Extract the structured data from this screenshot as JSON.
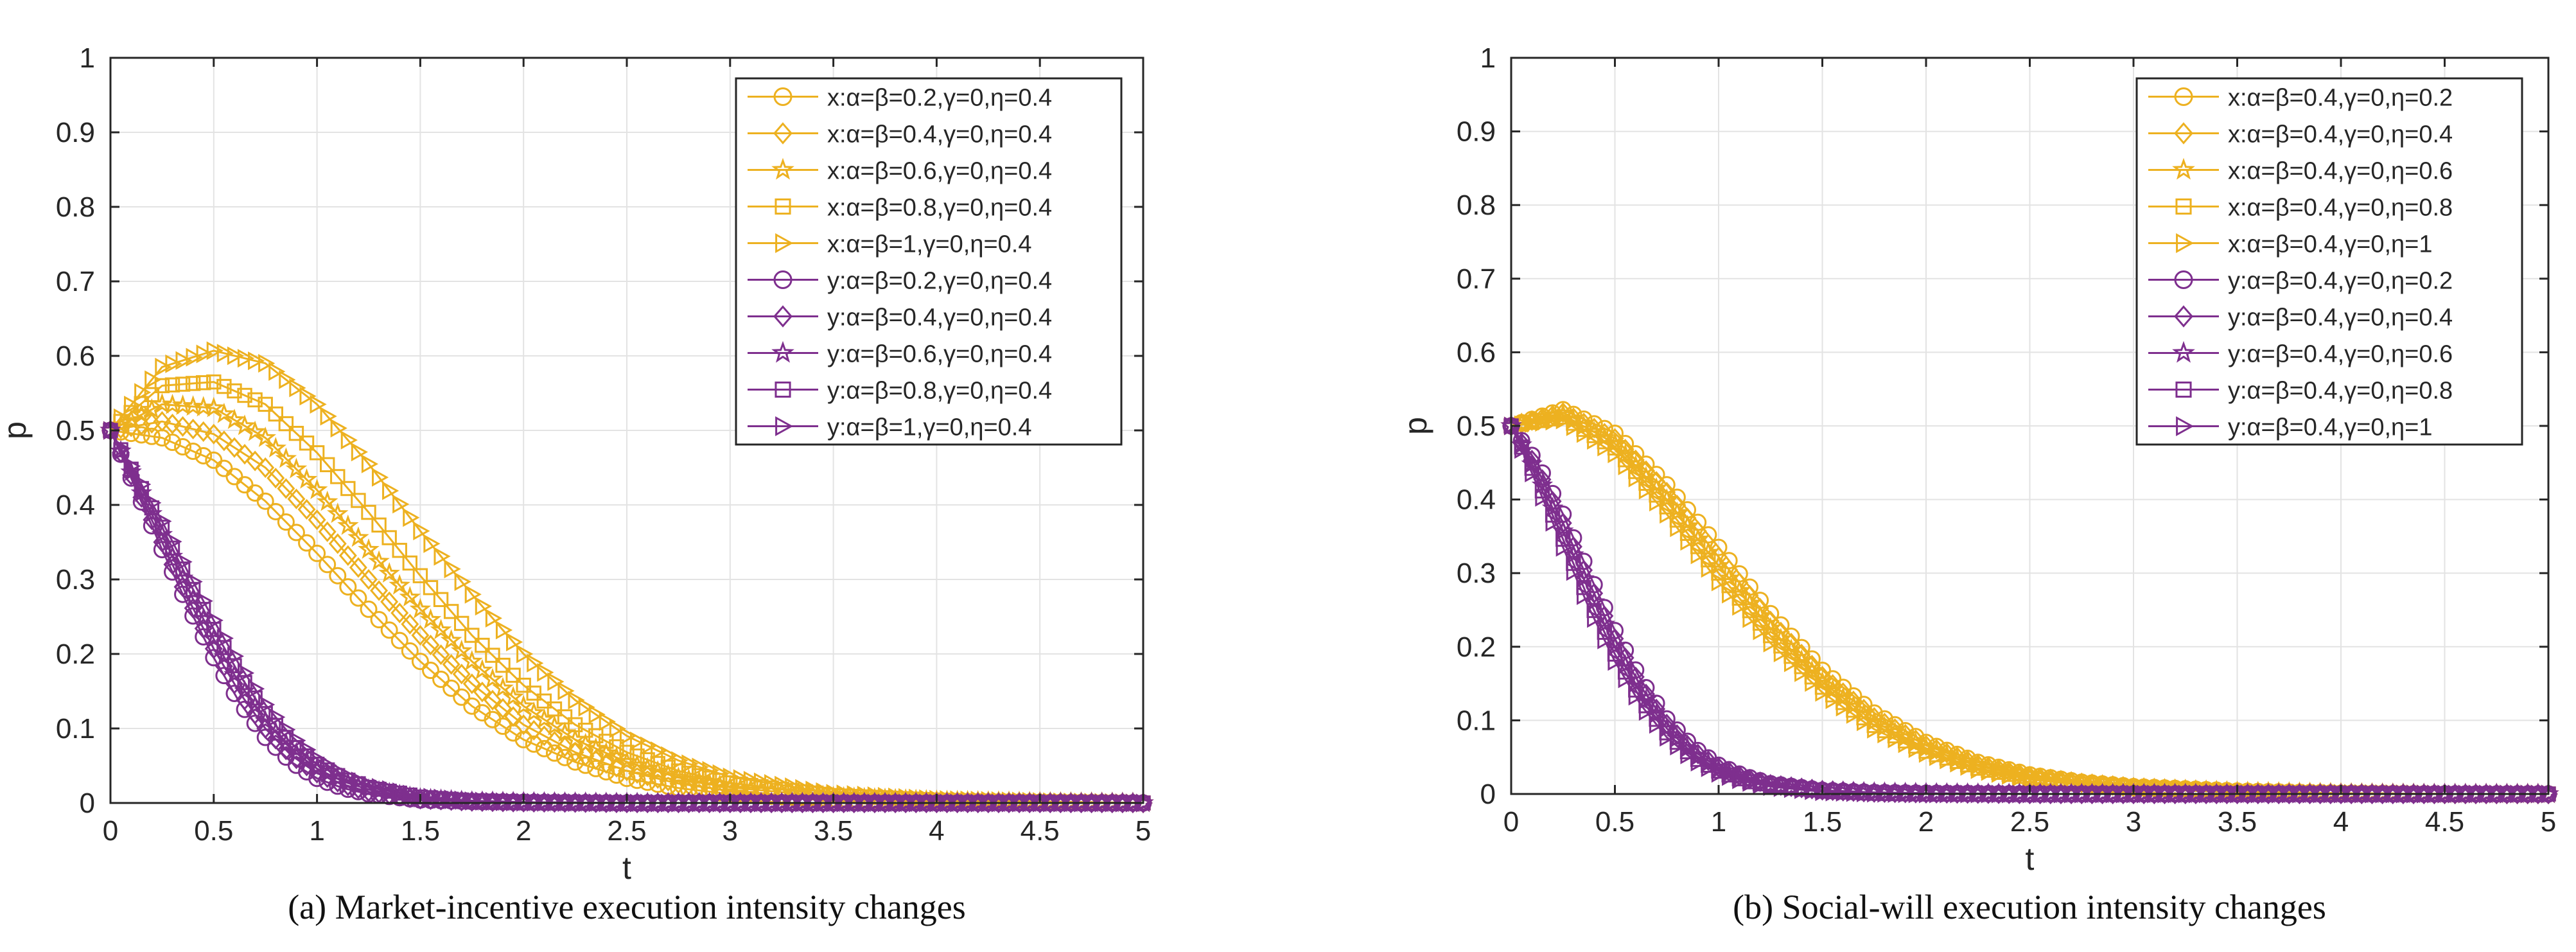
{
  "chart_data": [
    {
      "type": "line",
      "panel_id": "a",
      "title": "(a) Market-incentive execution intensity changes",
      "xlabel": "t",
      "ylabel": "p",
      "xlim": [
        0,
        5
      ],
      "ylim": [
        0,
        1
      ],
      "xticks": [
        "0",
        "0.5",
        "1",
        "1.5",
        "2",
        "2.5",
        "3",
        "3.5",
        "4",
        "4.5",
        "5"
      ],
      "yticks": [
        "0",
        "0.1",
        "0.2",
        "0.3",
        "0.4",
        "0.5",
        "0.6",
        "0.7",
        "0.8",
        "0.9",
        "1"
      ],
      "grid": true,
      "legend_position": "top-right",
      "colors": {
        "x_group": "#EDB120",
        "y_group": "#7E2F8E"
      },
      "series": [
        {
          "name": "x:α=β=0.2,γ=0,η=0.4",
          "group": "x",
          "marker": "circle",
          "x": [
            0,
            0.25,
            0.5,
            0.75,
            1,
            1.25,
            1.5,
            1.75,
            2,
            2.25,
            2.5,
            2.75,
            3,
            3.5,
            4,
            4.5,
            5
          ],
          "values": [
            0.5,
            0.49,
            0.46,
            0.405,
            0.335,
            0.26,
            0.19,
            0.13,
            0.085,
            0.055,
            0.033,
            0.02,
            0.012,
            0.005,
            0.002,
            0.001,
            0.0
          ]
        },
        {
          "name": "x:α=β=0.4,γ=0,η=0.4",
          "group": "x",
          "marker": "diamond",
          "x": [
            0,
            0.25,
            0.5,
            0.75,
            1,
            1.25,
            1.5,
            1.75,
            2,
            2.25,
            2.5,
            2.75,
            3,
            3.5,
            4,
            4.5,
            5
          ],
          "values": [
            0.5,
            0.512,
            0.495,
            0.45,
            0.38,
            0.3,
            0.225,
            0.16,
            0.105,
            0.068,
            0.043,
            0.026,
            0.016,
            0.006,
            0.002,
            0.001,
            0.0
          ]
        },
        {
          "name": "x:α=β=0.6,γ=0,η=0.4",
          "group": "x",
          "marker": "star",
          "x": [
            0,
            0.25,
            0.5,
            0.75,
            1,
            1.25,
            1.5,
            1.75,
            2,
            2.25,
            2.5,
            2.75,
            3,
            3.5,
            4,
            4.5,
            5
          ],
          "values": [
            0.5,
            0.535,
            0.53,
            0.49,
            0.42,
            0.34,
            0.26,
            0.19,
            0.13,
            0.085,
            0.055,
            0.034,
            0.021,
            0.008,
            0.003,
            0.001,
            0.0
          ]
        },
        {
          "name": "x:α=β=0.8,γ=0,η=0.4",
          "group": "x",
          "marker": "square",
          "x": [
            0,
            0.25,
            0.5,
            0.75,
            1,
            1.25,
            1.5,
            1.75,
            2,
            2.25,
            2.5,
            2.75,
            3,
            3.5,
            4,
            4.5,
            5
          ],
          "values": [
            0.5,
            0.56,
            0.565,
            0.535,
            0.47,
            0.39,
            0.305,
            0.225,
            0.158,
            0.105,
            0.068,
            0.043,
            0.027,
            0.01,
            0.004,
            0.001,
            0.0
          ]
        },
        {
          "name": "x:α=β=1,γ=0,η=0.4",
          "group": "x",
          "marker": "triangle-right",
          "x": [
            0,
            0.25,
            0.5,
            0.75,
            1,
            1.25,
            1.5,
            1.75,
            2,
            2.25,
            2.5,
            2.75,
            3,
            3.5,
            4,
            4.5,
            5
          ],
          "values": [
            0.5,
            0.585,
            0.607,
            0.59,
            0.535,
            0.455,
            0.365,
            0.28,
            0.2,
            0.138,
            0.09,
            0.057,
            0.035,
            0.013,
            0.005,
            0.002,
            0.0
          ]
        },
        {
          "name": "y:α=β=0.2,γ=0,η=0.4",
          "group": "y",
          "marker": "circle",
          "x": [
            0,
            0.125,
            0.25,
            0.375,
            0.5,
            0.625,
            0.75,
            0.875,
            1,
            1.125,
            1.25,
            1.5,
            1.75,
            2,
            2.5,
            3,
            4,
            5
          ],
          "values": [
            0.5,
            0.42,
            0.34,
            0.265,
            0.195,
            0.135,
            0.088,
            0.055,
            0.033,
            0.02,
            0.012,
            0.004,
            0.002,
            0.001,
            0.0,
            0.0,
            0.0,
            0.0
          ]
        },
        {
          "name": "y:α=β=0.4,γ=0,η=0.4",
          "group": "y",
          "marker": "diamond",
          "x": [
            0,
            0.125,
            0.25,
            0.375,
            0.5,
            0.625,
            0.75,
            0.875,
            1,
            1.125,
            1.25,
            1.5,
            1.75,
            2,
            2.5,
            3,
            4,
            5
          ],
          "values": [
            0.5,
            0.425,
            0.35,
            0.275,
            0.207,
            0.148,
            0.1,
            0.064,
            0.04,
            0.025,
            0.015,
            0.005,
            0.002,
            0.001,
            0.0,
            0.0,
            0.0,
            0.0
          ]
        },
        {
          "name": "y:α=β=0.6,γ=0,η=0.4",
          "group": "y",
          "marker": "star",
          "x": [
            0,
            0.125,
            0.25,
            0.375,
            0.5,
            0.625,
            0.75,
            0.875,
            1,
            1.125,
            1.25,
            1.5,
            1.75,
            2,
            2.5,
            3,
            4,
            5
          ],
          "values": [
            0.5,
            0.43,
            0.36,
            0.287,
            0.22,
            0.16,
            0.11,
            0.072,
            0.046,
            0.029,
            0.018,
            0.006,
            0.002,
            0.001,
            0.0,
            0.0,
            0.0,
            0.0
          ]
        },
        {
          "name": "y:α=β=0.8,γ=0,η=0.4",
          "group": "y",
          "marker": "square",
          "x": [
            0,
            0.125,
            0.25,
            0.375,
            0.5,
            0.625,
            0.75,
            0.875,
            1,
            1.125,
            1.25,
            1.5,
            1.75,
            2,
            2.5,
            3,
            4,
            5
          ],
          "values": [
            0.5,
            0.435,
            0.37,
            0.3,
            0.233,
            0.172,
            0.12,
            0.08,
            0.052,
            0.033,
            0.021,
            0.008,
            0.003,
            0.001,
            0.0,
            0.0,
            0.0,
            0.0
          ]
        },
        {
          "name": "y:α=β=1,γ=0,η=0.4",
          "group": "y",
          "marker": "triangle-right",
          "x": [
            0,
            0.125,
            0.25,
            0.375,
            0.5,
            0.625,
            0.75,
            0.875,
            1,
            1.125,
            1.25,
            1.5,
            1.75,
            2,
            2.5,
            3,
            4,
            5
          ],
          "values": [
            0.5,
            0.44,
            0.378,
            0.31,
            0.245,
            0.185,
            0.132,
            0.09,
            0.059,
            0.038,
            0.024,
            0.009,
            0.003,
            0.001,
            0.0,
            0.0,
            0.0,
            0.0
          ]
        }
      ]
    },
    {
      "type": "line",
      "panel_id": "b",
      "title": "(b) Social-will execution intensity changes",
      "xlabel": "t",
      "ylabel": "p",
      "xlim": [
        0,
        5
      ],
      "ylim": [
        0,
        1
      ],
      "xticks": [
        "0",
        "0.5",
        "1",
        "1.5",
        "2",
        "2.5",
        "3",
        "3.5",
        "4",
        "4.5",
        "5"
      ],
      "yticks": [
        "0",
        "0.1",
        "0.2",
        "0.3",
        "0.4",
        "0.5",
        "0.6",
        "0.7",
        "0.8",
        "0.9",
        "1"
      ],
      "grid": true,
      "legend_position": "top-right",
      "colors": {
        "x_group": "#EDB120",
        "y_group": "#7E2F8E"
      },
      "series": [
        {
          "name": "x:α=β=0.4,γ=0,η=0.2",
          "group": "x",
          "marker": "circle",
          "x": [
            0,
            0.25,
            0.5,
            0.75,
            1,
            1.25,
            1.5,
            1.75,
            2,
            2.25,
            2.5,
            2.75,
            3,
            3.5,
            4,
            4.5,
            5
          ],
          "values": [
            0.5,
            0.522,
            0.49,
            0.42,
            0.335,
            0.245,
            0.168,
            0.11,
            0.07,
            0.043,
            0.026,
            0.016,
            0.01,
            0.004,
            0.001,
            0.0,
            0.0
          ]
        },
        {
          "name": "x:α=β=0.4,γ=0,η=0.4",
          "group": "x",
          "marker": "diamond",
          "x": [
            0,
            0.25,
            0.5,
            0.75,
            1,
            1.25,
            1.5,
            1.75,
            2,
            2.25,
            2.5,
            2.75,
            3,
            3.5,
            4,
            4.5,
            5
          ],
          "values": [
            0.5,
            0.518,
            0.483,
            0.41,
            0.322,
            0.235,
            0.16,
            0.104,
            0.066,
            0.04,
            0.024,
            0.015,
            0.009,
            0.003,
            0.001,
            0.0,
            0.0
          ]
        },
        {
          "name": "x:α=β=0.4,γ=0,η=0.6",
          "group": "x",
          "marker": "star",
          "x": [
            0,
            0.25,
            0.5,
            0.75,
            1,
            1.25,
            1.5,
            1.75,
            2,
            2.25,
            2.5,
            2.75,
            3,
            3.5,
            4,
            4.5,
            5
          ],
          "values": [
            0.5,
            0.515,
            0.476,
            0.4,
            0.31,
            0.225,
            0.152,
            0.098,
            0.062,
            0.038,
            0.023,
            0.014,
            0.008,
            0.003,
            0.001,
            0.0,
            0.0
          ]
        },
        {
          "name": "x:α=β=0.4,γ=0,η=0.8",
          "group": "x",
          "marker": "square",
          "x": [
            0,
            0.25,
            0.5,
            0.75,
            1,
            1.25,
            1.5,
            1.75,
            2,
            2.25,
            2.5,
            2.75,
            3,
            3.5,
            4,
            4.5,
            5
          ],
          "values": [
            0.5,
            0.512,
            0.47,
            0.39,
            0.3,
            0.215,
            0.145,
            0.093,
            0.058,
            0.035,
            0.021,
            0.013,
            0.008,
            0.003,
            0.001,
            0.0,
            0.0
          ]
        },
        {
          "name": "x:α=β=0.4,γ=0,η=1",
          "group": "x",
          "marker": "triangle-right",
          "x": [
            0,
            0.25,
            0.5,
            0.75,
            1,
            1.25,
            1.5,
            1.75,
            2,
            2.25,
            2.5,
            2.75,
            3,
            3.5,
            4,
            4.5,
            5
          ],
          "values": [
            0.5,
            0.508,
            0.462,
            0.38,
            0.288,
            0.205,
            0.138,
            0.088,
            0.055,
            0.033,
            0.02,
            0.012,
            0.007,
            0.002,
            0.001,
            0.0,
            0.0
          ]
        },
        {
          "name": "y:α=β=0.4,γ=0,η=0.2",
          "group": "y",
          "marker": "circle",
          "x": [
            0,
            0.125,
            0.25,
            0.375,
            0.5,
            0.625,
            0.75,
            0.875,
            1,
            1.125,
            1.25,
            1.5,
            1.75,
            2,
            2.5,
            3,
            4,
            5
          ],
          "values": [
            0.5,
            0.45,
            0.38,
            0.3,
            0.222,
            0.155,
            0.102,
            0.064,
            0.039,
            0.024,
            0.014,
            0.005,
            0.002,
            0.001,
            0.0,
            0.0,
            0.0,
            0.0
          ]
        },
        {
          "name": "y:α=β=0.4,γ=0,η=0.4",
          "group": "y",
          "marker": "diamond",
          "x": [
            0,
            0.125,
            0.25,
            0.375,
            0.5,
            0.625,
            0.75,
            0.875,
            1,
            1.125,
            1.25,
            1.5,
            1.75,
            2,
            2.5,
            3,
            4,
            5
          ],
          "values": [
            0.5,
            0.442,
            0.368,
            0.288,
            0.211,
            0.146,
            0.095,
            0.059,
            0.036,
            0.022,
            0.013,
            0.005,
            0.002,
            0.001,
            0.0,
            0.0,
            0.0,
            0.0
          ]
        },
        {
          "name": "y:α=β=0.4,γ=0,η=0.6",
          "group": "y",
          "marker": "star",
          "x": [
            0,
            0.125,
            0.25,
            0.375,
            0.5,
            0.625,
            0.75,
            0.875,
            1,
            1.125,
            1.25,
            1.5,
            1.75,
            2,
            2.5,
            3,
            4,
            5
          ],
          "values": [
            0.5,
            0.435,
            0.357,
            0.276,
            0.2,
            0.137,
            0.089,
            0.055,
            0.033,
            0.02,
            0.012,
            0.004,
            0.002,
            0.001,
            0.0,
            0.0,
            0.0,
            0.0
          ]
        },
        {
          "name": "y:α=β=0.4,γ=0,η=0.8",
          "group": "y",
          "marker": "square",
          "x": [
            0,
            0.125,
            0.25,
            0.375,
            0.5,
            0.625,
            0.75,
            0.875,
            1,
            1.125,
            1.25,
            1.5,
            1.75,
            2,
            2.5,
            3,
            4,
            5
          ],
          "values": [
            0.5,
            0.428,
            0.346,
            0.264,
            0.19,
            0.129,
            0.083,
            0.051,
            0.031,
            0.018,
            0.011,
            0.004,
            0.001,
            0.0,
            0.0,
            0.0,
            0.0,
            0.0
          ]
        },
        {
          "name": "y:α=β=0.4,γ=0,η=1",
          "group": "y",
          "marker": "triangle-right",
          "x": [
            0,
            0.125,
            0.25,
            0.375,
            0.5,
            0.625,
            0.75,
            0.875,
            1,
            1.125,
            1.25,
            1.5,
            1.75,
            2,
            2.5,
            3,
            4,
            5
          ],
          "values": [
            0.5,
            0.42,
            0.335,
            0.253,
            0.18,
            0.121,
            0.077,
            0.047,
            0.028,
            0.017,
            0.01,
            0.003,
            0.001,
            0.0,
            0.0,
            0.0,
            0.0,
            0.0
          ]
        }
      ]
    }
  ]
}
